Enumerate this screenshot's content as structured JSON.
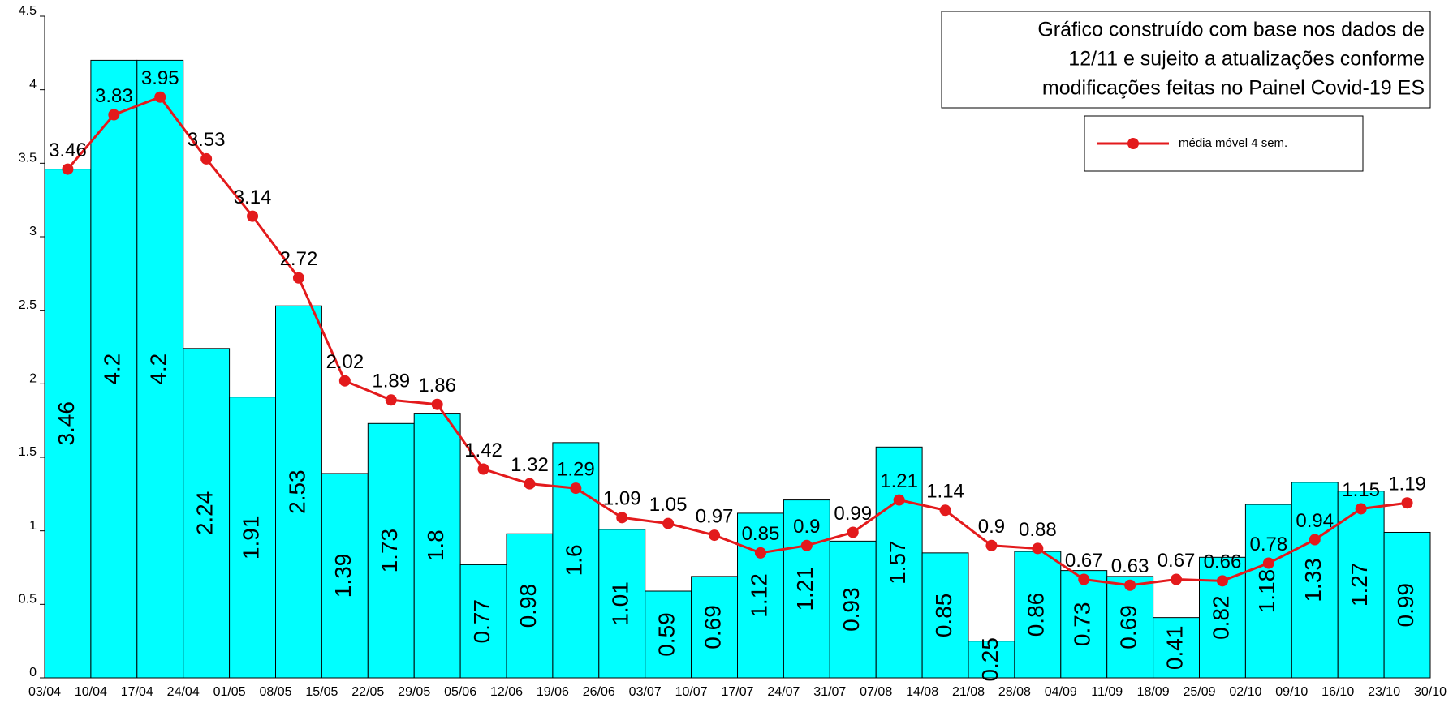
{
  "chart_data": {
    "type": "bar_line",
    "bin_labels": [
      "03/04",
      "10/04",
      "17/04",
      "24/04",
      "01/05",
      "08/05",
      "15/05",
      "22/05",
      "29/05",
      "05/06",
      "12/06",
      "19/06",
      "26/06",
      "03/07",
      "10/07",
      "17/07",
      "24/07",
      "31/07",
      "07/08",
      "14/08",
      "21/08",
      "28/08",
      "04/09",
      "11/09",
      "18/09",
      "25/09",
      "02/10",
      "09/10",
      "16/10",
      "23/10",
      "30/10"
    ],
    "series": [
      {
        "color": "#00ffff",
        "values": [
          3.46,
          4.2,
          4.2,
          2.24,
          1.91,
          2.53,
          1.39,
          1.73,
          1.8,
          0.77,
          0.98,
          1.6,
          1.01,
          0.59,
          0.69,
          1.12,
          1.21,
          0.93,
          1.57,
          0.85,
          0.25,
          0.86,
          0.73,
          0.69,
          0.41,
          0.82,
          1.18,
          1.33,
          1.27,
          0.99
        ]
      },
      {
        "name": "média móvel 4 sem.",
        "color": "#e31a1c",
        "values": [
          3.46,
          3.83,
          3.95,
          3.53,
          3.14,
          2.72,
          2.02,
          1.89,
          1.86,
          1.42,
          1.32,
          1.29,
          1.09,
          1.05,
          0.97,
          0.85,
          0.9,
          0.99,
          1.21,
          1.14,
          0.9,
          0.88,
          0.67,
          0.63,
          0.67,
          0.66,
          0.78,
          0.94,
          1.15,
          1.19
        ]
      }
    ],
    "annotation": [
      "Gráfico construído com base nos dados de",
      "12/11 e sujeito a atualizações conforme",
      "modificações feitas no Painel Covid-19 ES"
    ],
    "ylim": [
      0,
      4.5
    ],
    "yticks": [
      0,
      0.5,
      1,
      1.5,
      2,
      2.5,
      3,
      3.5,
      4,
      4.5
    ]
  }
}
